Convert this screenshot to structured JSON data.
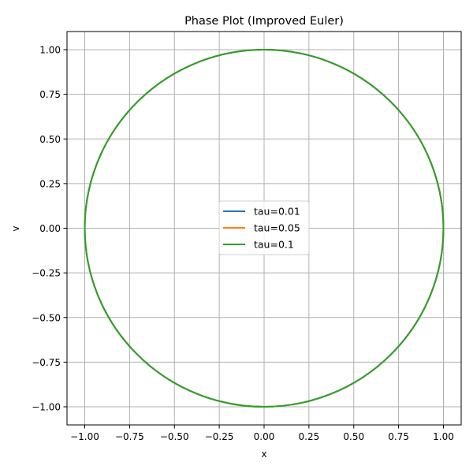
{
  "chart_data": {
    "type": "line",
    "title": "Phase Plot (Improved Euler)",
    "xlabel": "x",
    "ylabel": "v",
    "xlim": [
      -1.1,
      1.1
    ],
    "ylim": [
      -1.1,
      1.1
    ],
    "xticks": [
      "-1.00",
      "-0.75",
      "-0.50",
      "-0.25",
      "0.00",
      "0.25",
      "0.50",
      "0.75",
      "1.00"
    ],
    "yticks": [
      "-1.00",
      "-0.75",
      "-0.50",
      "-0.25",
      "0.00",
      "0.25",
      "0.50",
      "0.75",
      "1.00"
    ],
    "grid": true,
    "legend_position": "center",
    "series": [
      {
        "name": "tau=0.01",
        "color": "#1f77b4",
        "shape": "unit circle",
        "x": [
          1,
          0.707,
          0,
          -0.707,
          -1,
          -0.707,
          0,
          0.707,
          1
        ],
        "y": [
          0,
          0.707,
          1,
          0.707,
          0,
          -0.707,
          -1,
          -0.707,
          0
        ]
      },
      {
        "name": "tau=0.05",
        "color": "#ff7f0e",
        "shape": "unit circle",
        "x": [
          1,
          0.707,
          0,
          -0.707,
          -1,
          -0.707,
          0,
          0.707,
          1
        ],
        "y": [
          0,
          0.707,
          1,
          0.707,
          0,
          -0.707,
          -1,
          -0.707,
          0
        ]
      },
      {
        "name": "tau=0.1",
        "color": "#2ca02c",
        "shape": "unit circle",
        "x": [
          1,
          0.707,
          0,
          -0.707,
          -1,
          -0.707,
          0,
          0.707,
          1
        ],
        "y": [
          0,
          0.707,
          1,
          0.707,
          0,
          -0.707,
          -1,
          -0.707,
          0
        ]
      }
    ]
  }
}
